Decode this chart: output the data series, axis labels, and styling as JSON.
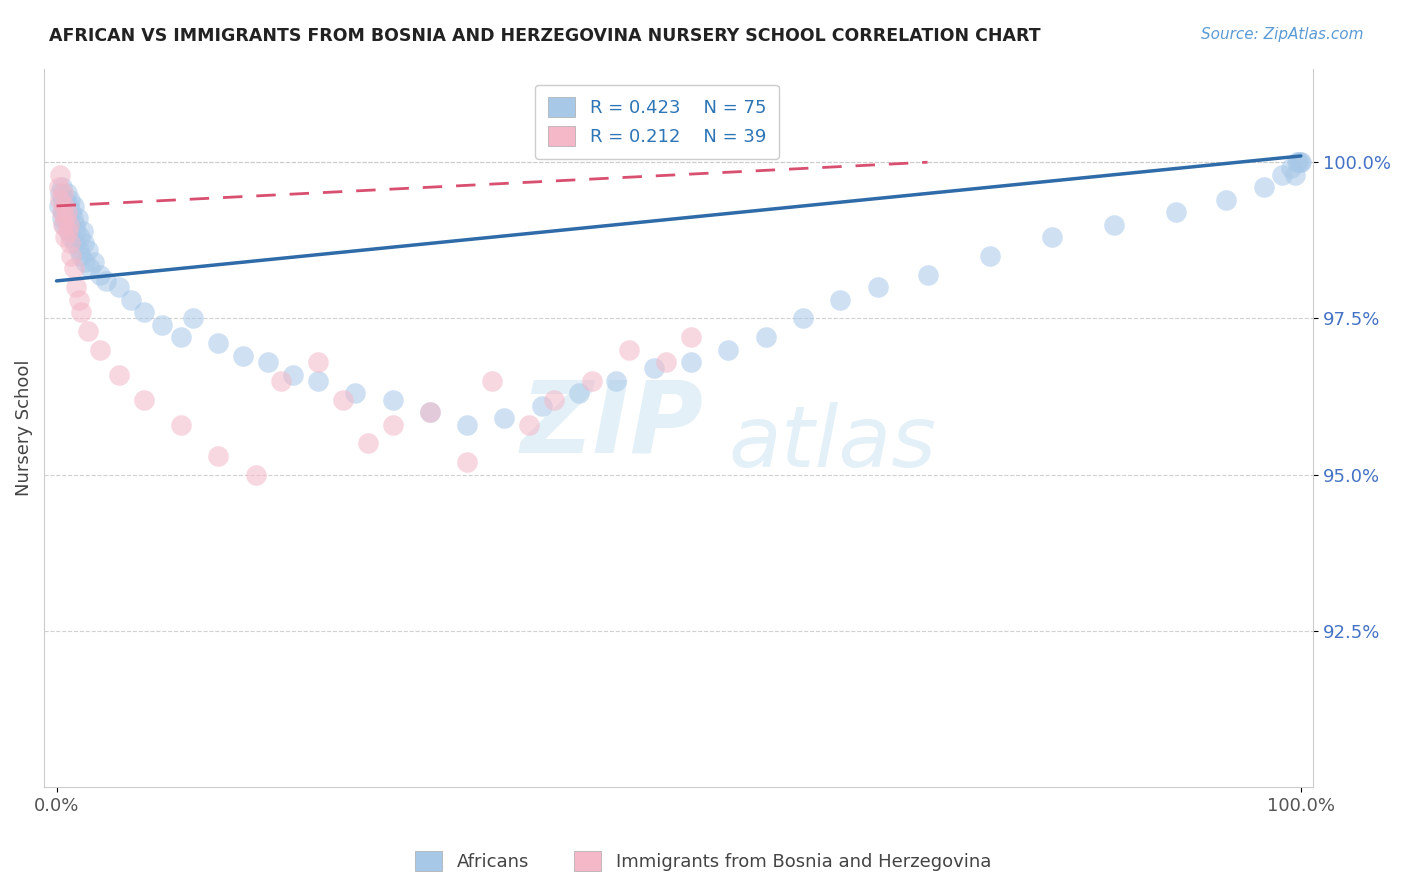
{
  "title": "AFRICAN VS IMMIGRANTS FROM BOSNIA AND HERZEGOVINA NURSERY SCHOOL CORRELATION CHART",
  "source": "Source: ZipAtlas.com",
  "ylabel": "Nursery School",
  "legend_blue_r": "R = 0.423",
  "legend_blue_n": "N = 75",
  "legend_pink_r": "R = 0.212",
  "legend_pink_n": "N = 39",
  "legend_label_blue": "Africans",
  "legend_label_pink": "Immigrants from Bosnia and Herzegovina",
  "blue_color": "#A8C8E8",
  "pink_color": "#F4B8C8",
  "blue_line_color": "#2E6BA8",
  "pink_line_color": "#D94F70",
  "watermark_zip": "ZIP",
  "watermark_atlas": "atlas",
  "ylim_min": 90.0,
  "ylim_max": 101.5,
  "xlim_min": -1.0,
  "xlim_max": 101.0,
  "y_ticks": [
    92.5,
    95.0,
    97.5,
    100.0
  ],
  "blue_scatter_x": [
    0.2,
    0.3,
    0.4,
    0.4,
    0.5,
    0.5,
    0.6,
    0.6,
    0.7,
    0.8,
    0.8,
    0.9,
    1.0,
    1.0,
    1.1,
    1.1,
    1.2,
    1.2,
    1.3,
    1.4,
    1.5,
    1.5,
    1.6,
    1.7,
    1.8,
    1.9,
    2.0,
    2.1,
    2.2,
    2.3,
    2.5,
    2.7,
    3.0,
    3.5,
    4.0,
    5.0,
    6.0,
    7.0,
    8.5,
    10.0,
    11.0,
    13.0,
    15.0,
    17.0,
    19.0,
    21.0,
    24.0,
    27.0,
    30.0,
    33.0,
    36.0,
    39.0,
    42.0,
    45.0,
    48.0,
    51.0,
    54.0,
    57.0,
    60.0,
    63.0,
    66.0,
    70.0,
    75.0,
    80.0,
    85.0,
    90.0,
    94.0,
    97.0,
    98.5,
    99.2,
    99.7,
    99.9,
    100.0,
    99.5,
    99.8
  ],
  "blue_scatter_y": [
    99.3,
    99.5,
    99.1,
    99.6,
    99.4,
    99.2,
    99.3,
    99.0,
    99.4,
    99.2,
    99.5,
    99.1,
    99.3,
    98.9,
    99.4,
    99.0,
    99.2,
    98.8,
    99.1,
    99.3,
    99.0,
    98.7,
    98.9,
    99.1,
    98.6,
    98.8,
    98.5,
    98.9,
    98.7,
    98.4,
    98.6,
    98.3,
    98.4,
    98.2,
    98.1,
    98.0,
    97.8,
    97.6,
    97.4,
    97.2,
    97.5,
    97.1,
    96.9,
    96.8,
    96.6,
    96.5,
    96.3,
    96.2,
    96.0,
    95.8,
    95.9,
    96.1,
    96.3,
    96.5,
    96.7,
    96.8,
    97.0,
    97.2,
    97.5,
    97.8,
    98.0,
    98.2,
    98.5,
    98.8,
    99.0,
    99.2,
    99.4,
    99.6,
    99.8,
    99.9,
    100.0,
    100.0,
    100.0,
    99.8,
    100.0
  ],
  "pink_scatter_x": [
    0.2,
    0.3,
    0.3,
    0.4,
    0.5,
    0.5,
    0.6,
    0.7,
    0.7,
    0.8,
    0.9,
    1.0,
    1.1,
    1.2,
    1.4,
    1.6,
    1.8,
    2.0,
    2.5,
    3.5,
    5.0,
    7.0,
    10.0,
    13.0,
    16.0,
    18.0,
    21.0,
    23.0,
    25.0,
    27.0,
    30.0,
    33.0,
    35.0,
    38.0,
    40.0,
    43.0,
    46.0,
    49.0,
    51.0
  ],
  "pink_scatter_y": [
    99.6,
    99.4,
    99.8,
    99.2,
    99.5,
    99.0,
    99.3,
    98.8,
    99.1,
    99.2,
    98.9,
    99.0,
    98.7,
    98.5,
    98.3,
    98.0,
    97.8,
    97.6,
    97.3,
    97.0,
    96.6,
    96.2,
    95.8,
    95.3,
    95.0,
    96.5,
    96.8,
    96.2,
    95.5,
    95.8,
    96.0,
    95.2,
    96.5,
    95.8,
    96.2,
    96.5,
    97.0,
    96.8,
    97.2
  ],
  "blue_trend_x0": 0.0,
  "blue_trend_y0": 98.1,
  "blue_trend_x1": 100.0,
  "blue_trend_y1": 100.1,
  "pink_trend_x0": 0.0,
  "pink_trend_y0": 99.3,
  "pink_trend_x1": 70.0,
  "pink_trend_y1": 100.0
}
